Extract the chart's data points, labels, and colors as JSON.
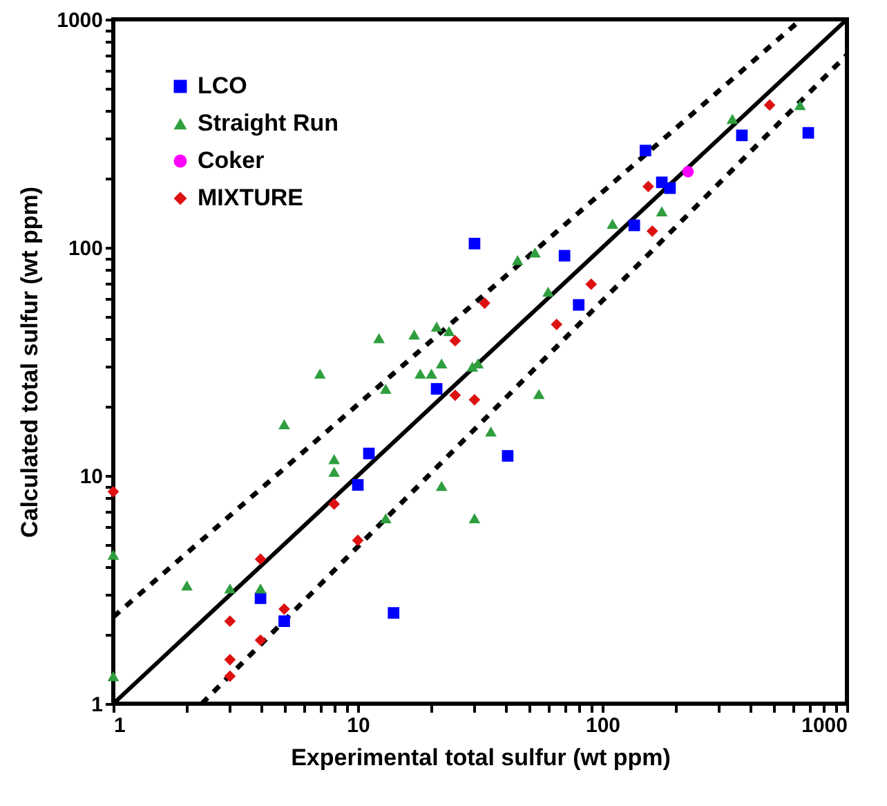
{
  "chart_data": {
    "type": "scatter",
    "xlabel": "Experimental total sulfur (wt ppm)",
    "ylabel": "Calculated total sulfur (wt ppm)",
    "log": "xy",
    "legend": "top left",
    "xlim": [
      1,
      1000
    ],
    "ylim": [
      1,
      1000
    ],
    "xticks": [
      1,
      {
        "value": 2,
        "label": null
      },
      {
        "value": 3,
        "label": null
      },
      {
        "value": 4,
        "label": null
      },
      {
        "value": 5,
        "label": null
      },
      {
        "value": 6,
        "label": null
      },
      {
        "value": 7,
        "label": null
      },
      {
        "value": 8,
        "label": null
      },
      {
        "value": 9,
        "label": null
      },
      10,
      {
        "value": 20,
        "label": null
      },
      {
        "value": 30,
        "label": null
      },
      {
        "value": 40,
        "label": null
      },
      {
        "value": 50,
        "label": null
      },
      {
        "value": 60,
        "label": null
      },
      {
        "value": 70,
        "label": null
      },
      {
        "value": 80,
        "label": null
      },
      {
        "value": 90,
        "label": null
      },
      100,
      {
        "value": 200,
        "label": null
      },
      {
        "value": 300,
        "label": null
      },
      {
        "value": 400,
        "label": null
      },
      {
        "value": 500,
        "label": null
      },
      {
        "value": 600,
        "label": null
      },
      {
        "value": 700,
        "label": null
      },
      {
        "value": 800,
        "label": null
      },
      {
        "value": 900,
        "label": null
      },
      1000
    ],
    "yticks": [
      1,
      {
        "value": 2,
        "label": null
      },
      {
        "value": 3,
        "label": null
      },
      {
        "value": 4,
        "label": null
      },
      {
        "value": 5,
        "label": null
      },
      {
        "value": 6,
        "label": null
      },
      {
        "value": 7,
        "label": null
      },
      {
        "value": 8,
        "label": null
      },
      {
        "value": 9,
        "label": null
      },
      10,
      {
        "value": 20,
        "label": null
      },
      {
        "value": 30,
        "label": null
      },
      {
        "value": 40,
        "label": null
      },
      {
        "value": 50,
        "label": null
      },
      {
        "value": 60,
        "label": null
      },
      {
        "value": 70,
        "label": null
      },
      {
        "value": 80,
        "label": null
      },
      {
        "value": 90,
        "label": null
      },
      100,
      {
        "value": 200,
        "label": null
      },
      {
        "value": 300,
        "label": null
      },
      {
        "value": 400,
        "label": null
      },
      {
        "value": 500,
        "label": null
      },
      {
        "value": 600,
        "label": null
      },
      {
        "value": 700,
        "label": null
      },
      {
        "value": 800,
        "label": null
      },
      {
        "value": 900,
        "label": null
      },
      1000
    ],
    "series": [
      {
        "type": "line",
        "color": "#000000",
        "line_style": "solid",
        "x": [
          1,
          1000
        ],
        "values": [
          1,
          1000
        ]
      },
      {
        "type": "line",
        "color": "#000000",
        "line_style": "dashed",
        "x": [
          1,
          650
        ],
        "values": [
          2.4,
          1000
        ]
      },
      {
        "type": "line",
        "color": "#000000",
        "line_style": "dashed",
        "x": [
          2.3,
          1000
        ],
        "values": [
          1,
          700
        ]
      },
      {
        "name": "LCO",
        "color": "#0000ff",
        "marker": "square",
        "x": [
          30,
          150,
          372,
          695,
          175,
          189,
          135,
          70,
          80,
          21,
          11.1,
          10,
          4,
          5,
          14,
          41
        ],
        "values": [
          104,
          266,
          310,
          318,
          193,
          182,
          125,
          92,
          56,
          24,
          12.5,
          9.1,
          2.9,
          2.3,
          2.5,
          12.2
        ]
      },
      {
        "name": "Straight Run",
        "color": "#2e9e3e",
        "marker": "triangle",
        "x": [
          643,
          340,
          175,
          110,
          53,
          45,
          60,
          12.2,
          17,
          21,
          23.6,
          22,
          29.4,
          31,
          18,
          20,
          13,
          7,
          5,
          8,
          8,
          22,
          35,
          13,
          30,
          2,
          3,
          4,
          1,
          1,
          55
        ],
        "values": [
          421,
          366,
          144,
          127,
          95,
          88,
          64,
          40,
          41.5,
          45,
          43,
          31,
          30,
          31,
          28,
          28,
          24,
          28,
          16.8,
          11.8,
          10.4,
          9,
          15.6,
          6.5,
          6.5,
          3.3,
          3.2,
          3.2,
          4.5,
          1.32,
          22.8
        ]
      },
      {
        "name": "Coker",
        "color": "#ff00ff",
        "marker": "circle",
        "x": [
          224
        ],
        "values": [
          215
        ]
      },
      {
        "name": "MIXTURE",
        "color": "#dd1111",
        "marker": "diamond",
        "x": [
          483,
          154,
          160,
          33,
          90,
          65,
          25,
          25,
          30,
          8,
          10,
          4,
          5,
          3,
          4,
          3,
          3,
          1
        ],
        "values": [
          421,
          185,
          118,
          57,
          69,
          46,
          39,
          22.5,
          21.5,
          7.5,
          5.2,
          4.3,
          2.6,
          2.3,
          1.9,
          1.56,
          1.32,
          8.5
        ]
      }
    ]
  }
}
